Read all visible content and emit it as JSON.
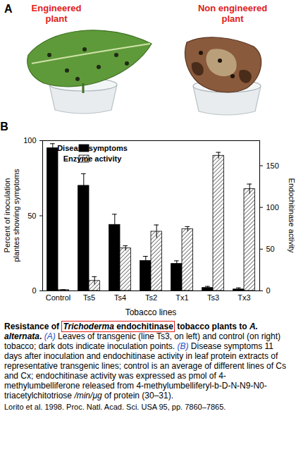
{
  "panel_a": {
    "letter": "A",
    "labels": [
      "Engineered plant",
      "Non engineered plant"
    ],
    "label_color": "#e0201b"
  },
  "chart_data": {
    "type": "bar",
    "panel_label": "B",
    "x_label": "Tobacco lines",
    "y_label": "Percent of inoculation plantes showing symptoms",
    "y2_label": "Endochitinase activity",
    "categories": [
      "Control",
      "Ts5",
      "Ts4",
      "Ts2",
      "Tx1",
      "Ts3",
      "Tx3"
    ],
    "series": [
      {
        "name": "Disease symptoms",
        "color": "#000000",
        "marker": "solid",
        "values": [
          95,
          70,
          44,
          20,
          18,
          2,
          1
        ],
        "errors": [
          3,
          8,
          7,
          3,
          2,
          1,
          1
        ]
      },
      {
        "name": "Enzyme activity",
        "color": "#555555",
        "marker": "hatch",
        "axis": "y2",
        "values": [
          1,
          12,
          51,
          71,
          74,
          162,
          122
        ],
        "errors": [
          0.5,
          5,
          3,
          8,
          3,
          4,
          6
        ]
      }
    ],
    "ylim": [
      0,
      100
    ],
    "yticks": [
      0,
      50,
      100
    ],
    "y2lim": [
      0,
      180
    ],
    "y2ticks": [
      0,
      50,
      100,
      150
    ],
    "legend": "top"
  },
  "caption": {
    "segments": [
      {
        "text": "Resistance of ",
        "bold": true
      },
      {
        "boxed": true,
        "box_color": "#e0201b",
        "segments": [
          {
            "text": "Trichoderma",
            "bold": true,
            "italic": true
          },
          {
            "text": " endochitinase",
            "bold": true
          }
        ]
      },
      {
        "text": " tobacco plants to ",
        "bold": true
      },
      {
        "text": "A. alternata",
        "bold": true,
        "italic": true
      },
      {
        "text": ". ",
        "bold": true
      },
      {
        "text": "(A)",
        "italic": true,
        "color": "#1e50c8"
      },
      {
        "text": " Leaves of transgenic (line Ts3, on left) and control (on right) tobacco; dark dots indicate inoculation points. "
      },
      {
        "text": "(B)",
        "italic": true,
        "color": "#1e50c8"
      },
      {
        "text": " Disease symptoms 11 days after inoculation and endochitinase activity in leaf protein extracts of representative transgenic lines; control is an average of different lines of Cs and Cx; endochitinase activity was expressed as pmol of 4-methylumbelliferone released from 4-methylumbelliferyl-b-D-N-N9-N0-triacetylchitotriose "
      },
      {
        "text": "/min/μg",
        "italic": true
      },
      {
        "text": " of protein (30–31)."
      }
    ],
    "citation": "Lorito et al. 1998. Proc. Natl. Acad. Sci. USA 95, pp. 7860–7865."
  }
}
